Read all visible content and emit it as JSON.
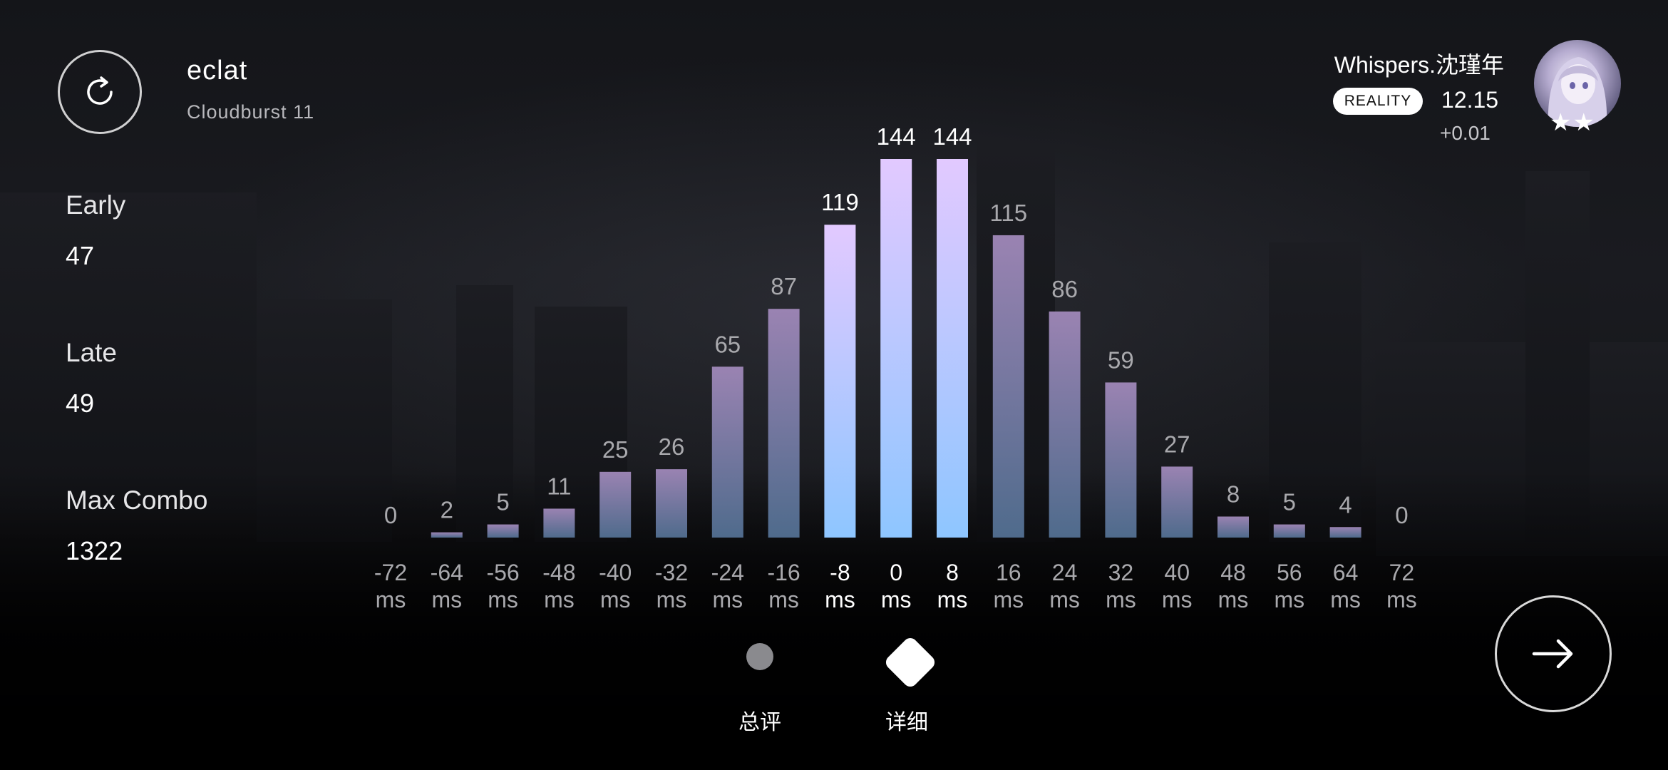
{
  "song": {
    "title": "eclat",
    "difficulty": "Cloudburst 11"
  },
  "stats": [
    {
      "label": "Early",
      "value": "47"
    },
    {
      "label": "Late",
      "value": "49"
    },
    {
      "label": "Max Combo",
      "value": "1322"
    }
  ],
  "player": {
    "name": "Whispers.沈瑾年",
    "badge": "REALITY",
    "rks": "12.15",
    "rks_delta": "+0.01",
    "stars": "★★"
  },
  "modes": [
    {
      "label": "总评",
      "icon": "circle-icon",
      "active": false
    },
    {
      "label": "详细",
      "icon": "diamond-icon",
      "active": true
    }
  ],
  "icons": {
    "replay": "replay-icon",
    "next": "arrow-right-icon"
  },
  "chart_data": {
    "type": "bar",
    "categories": [
      "-72 ms",
      "-64 ms",
      "-56 ms",
      "-48 ms",
      "-40 ms",
      "-32 ms",
      "-24 ms",
      "-16 ms",
      "-8 ms",
      "0 ms",
      "8 ms",
      "16 ms",
      "24 ms",
      "32 ms",
      "40 ms",
      "48 ms",
      "56 ms",
      "64 ms",
      "72 ms"
    ],
    "values": [
      0,
      2,
      5,
      11,
      25,
      26,
      65,
      87,
      119,
      144,
      144,
      115,
      86,
      59,
      27,
      8,
      5,
      4,
      0
    ],
    "highlighted": [
      "-8 ms",
      "0 ms",
      "8 ms"
    ],
    "ylim": [
      0,
      144
    ],
    "grid": false,
    "colors": {
      "top": "#e2c9ff",
      "bottom": "#8ec6ff",
      "dim": "#8a7aa0",
      "label_dim": "#a9a9ad"
    }
  }
}
